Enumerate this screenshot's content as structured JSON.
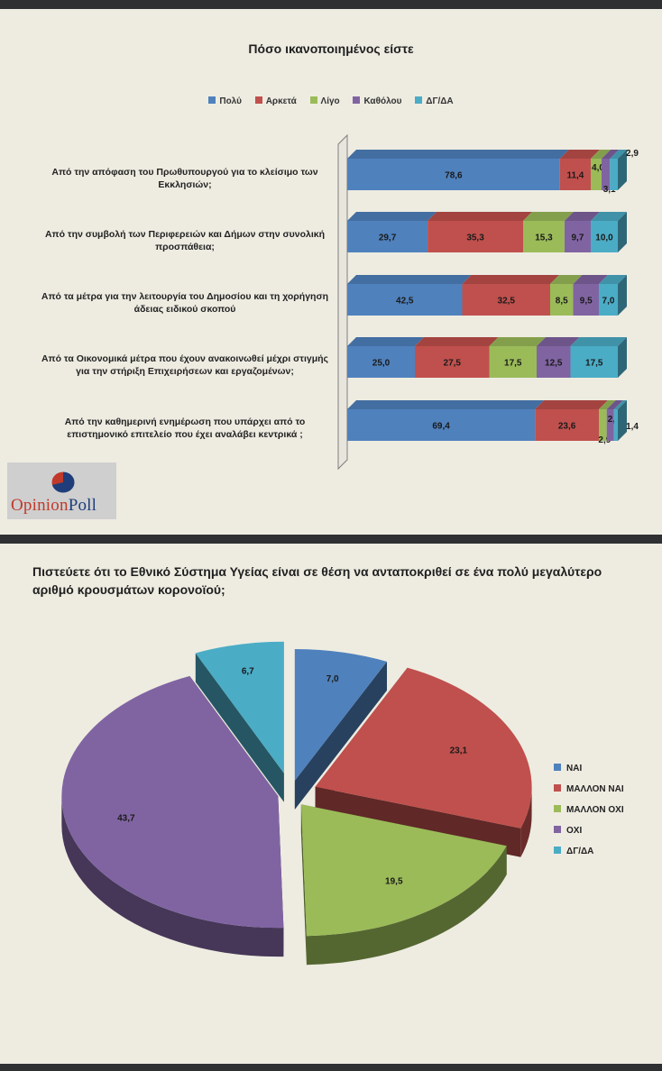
{
  "chart_data": [
    {
      "type": "bar",
      "orientation": "horizontal",
      "stacked": true,
      "title": "Πόσο ικανοποιημένος είστε",
      "legend_position": "top",
      "categories": [
        "Από την απόφαση του Πρωθυπουργού για το κλείσιμο των Εκκλησιών;",
        "Από την συμβολή των Περιφερειών και Δήμων στην συνολική προσπάθεια;",
        "Από τα μέτρα για την λειτουργία του Δημοσίου και τη χορήγηση άδειας ειδικού σκοπού",
        "Από τα Οικονομικά μέτρα που έχουν ανακοινωθεί μέχρι στιγμής για την στήριξη Επιχειρήσεων και εργαζομένων;",
        "Από την καθημερινή ενημέρωση που υπάρχει από το επιστημονικό επιτελείο που έχει αναλάβει κεντρικά ;"
      ],
      "series": [
        {
          "name": "Πολύ",
          "color": "#4f81bd",
          "values": [
            78.6,
            29.7,
            42.5,
            25.0,
            69.4
          ],
          "labels": [
            "78,6",
            "29,7",
            "42,5",
            "25,0",
            "69,4"
          ]
        },
        {
          "name": "Αρκετά",
          "color": "#c0504d",
          "values": [
            11.4,
            35.3,
            32.5,
            27.5,
            23.6
          ],
          "labels": [
            "11,4",
            "35,3",
            "32,5",
            "27,5",
            "23,6"
          ]
        },
        {
          "name": "Λίγο",
          "color": "#9bbb59",
          "values": [
            4.0,
            15.3,
            8.5,
            17.5,
            2.9
          ],
          "labels": [
            "4,0",
            "15,3",
            "8,5",
            "17,5",
            "2,9"
          ]
        },
        {
          "name": "Καθόλου",
          "color": "#8064a2",
          "values": [
            3.1,
            9.7,
            9.5,
            12.5,
            2.7
          ],
          "labels": [
            "3,1",
            "9,7",
            "9,5",
            "12,5",
            "2,7"
          ]
        },
        {
          "name": "ΔΓ/ΔΑ",
          "color": "#4bacc6",
          "values": [
            2.9,
            10.0,
            7.0,
            17.5,
            1.4
          ],
          "labels": [
            "2,9",
            "10,0",
            "7,0",
            "17,5",
            "1,4"
          ]
        }
      ]
    },
    {
      "type": "pie",
      "title": "Πιστεύετε ότι το Εθνικό Σύστημα Υγείας είναι σε θέση να ανταποκριθεί σε ένα πολύ μεγαλύτερο αριθμό κρουσμάτων κορονοϊού;",
      "legend_position": "right",
      "slices": [
        {
          "name": "ΝΑΙ",
          "value": 7.0,
          "label": "7,0",
          "color": "#4f81bd"
        },
        {
          "name": "ΜΑΛΛΟΝ ΝΑΙ",
          "value": 23.1,
          "label": "23,1",
          "color": "#c0504d"
        },
        {
          "name": "ΜΑΛΛΟΝ ΟΧΙ",
          "value": 19.5,
          "label": "19,5",
          "color": "#9bbb59"
        },
        {
          "name": "ΟΧΙ",
          "value": 43.7,
          "label": "43,7",
          "color": "#8064a2"
        },
        {
          "name": "ΔΓ/ΔΑ",
          "value": 6.7,
          "label": "6,7",
          "color": "#4bacc6"
        }
      ]
    }
  ],
  "logo": {
    "part1": "Opinion",
    "part2": "Poll"
  }
}
